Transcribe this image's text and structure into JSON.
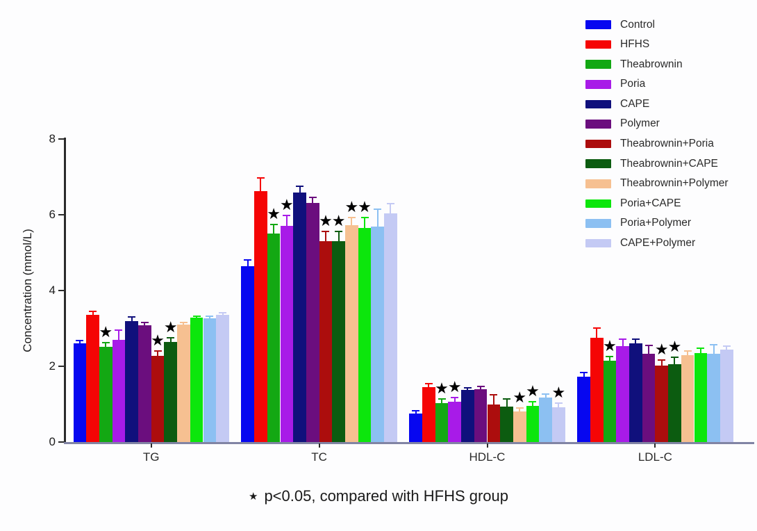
{
  "chart_data": {
    "type": "bar",
    "ylabel": "Concentration (mmol/L)",
    "ylim": [
      0,
      8
    ],
    "yticks": [
      0,
      2,
      4,
      6,
      8
    ],
    "grid": false,
    "legend_position": "top-right",
    "significance_marker": "★",
    "footnote": "p<0.05, compared with HFHS group",
    "categories": [
      "TG",
      "TC",
      "HDL-C",
      "LDL-C"
    ],
    "series": [
      {
        "name": "Control",
        "color": "#0707f0",
        "values": [
          2.6,
          4.65,
          0.75,
          1.72
        ],
        "errors": [
          0.07,
          0.15,
          0.08,
          0.11
        ],
        "significant": [
          false,
          false,
          false,
          false
        ]
      },
      {
        "name": "HFHS",
        "color": "#f50505",
        "values": [
          3.35,
          6.62,
          1.45,
          2.75
        ],
        "errors": [
          0.1,
          0.36,
          0.09,
          0.26
        ],
        "significant": [
          false,
          false,
          false,
          false
        ]
      },
      {
        "name": "Theabrownin",
        "color": "#13a813",
        "values": [
          2.51,
          5.5,
          1.03,
          2.15
        ],
        "errors": [
          0.12,
          0.24,
          0.11,
          0.11
        ],
        "significant": [
          true,
          true,
          true,
          true
        ]
      },
      {
        "name": "Poria",
        "color": "#a81be8",
        "values": [
          2.7,
          5.7,
          1.06,
          2.53
        ],
        "errors": [
          0.26,
          0.28,
          0.11,
          0.18
        ],
        "significant": [
          false,
          true,
          true,
          false
        ]
      },
      {
        "name": "CAPE",
        "color": "#10107c",
        "values": [
          3.2,
          6.58,
          1.38,
          2.6
        ],
        "errors": [
          0.11,
          0.17,
          0.05,
          0.11
        ],
        "significant": [
          false,
          false,
          false,
          false
        ]
      },
      {
        "name": "Polymer",
        "color": "#6b0e7e",
        "values": [
          3.09,
          6.31,
          1.39,
          2.33
        ],
        "errors": [
          0.06,
          0.15,
          0.07,
          0.22
        ],
        "significant": [
          false,
          false,
          false,
          false
        ]
      },
      {
        "name": "Theabrownin+Poria",
        "color": "#ac0d0d",
        "values": [
          2.28,
          5.3,
          0.99,
          2.02
        ],
        "errors": [
          0.13,
          0.26,
          0.26,
          0.15
        ],
        "significant": [
          true,
          true,
          false,
          true
        ]
      },
      {
        "name": "Theabrownin+CAPE",
        "color": "#0c5c10",
        "values": [
          2.64,
          5.3,
          0.94,
          2.05
        ],
        "errors": [
          0.12,
          0.26,
          0.2,
          0.18
        ],
        "significant": [
          true,
          true,
          false,
          true
        ]
      },
      {
        "name": "Theabrownin+Polymer",
        "color": "#f6c091",
        "values": [
          3.1,
          5.72,
          0.8,
          2.29
        ],
        "errors": [
          0.06,
          0.2,
          0.1,
          0.11
        ],
        "significant": [
          false,
          true,
          true,
          false
        ]
      },
      {
        "name": "Poria+CAPE",
        "color": "#0ce60c",
        "values": [
          3.28,
          5.65,
          0.95,
          2.35
        ],
        "errors": [
          0.05,
          0.28,
          0.12,
          0.12
        ],
        "significant": [
          false,
          true,
          true,
          false
        ]
      },
      {
        "name": "Poria+Polymer",
        "color": "#8cc0f2",
        "values": [
          3.27,
          5.69,
          1.18,
          2.33
        ],
        "errors": [
          0.06,
          0.45,
          0.08,
          0.24
        ],
        "significant": [
          false,
          false,
          false,
          false
        ]
      },
      {
        "name": "CAPE+Polymer",
        "color": "#c4caf4",
        "values": [
          3.36,
          6.04,
          0.91,
          2.44
        ],
        "errors": [
          0.05,
          0.26,
          0.12,
          0.09
        ],
        "significant": [
          false,
          false,
          true,
          false
        ]
      }
    ]
  }
}
